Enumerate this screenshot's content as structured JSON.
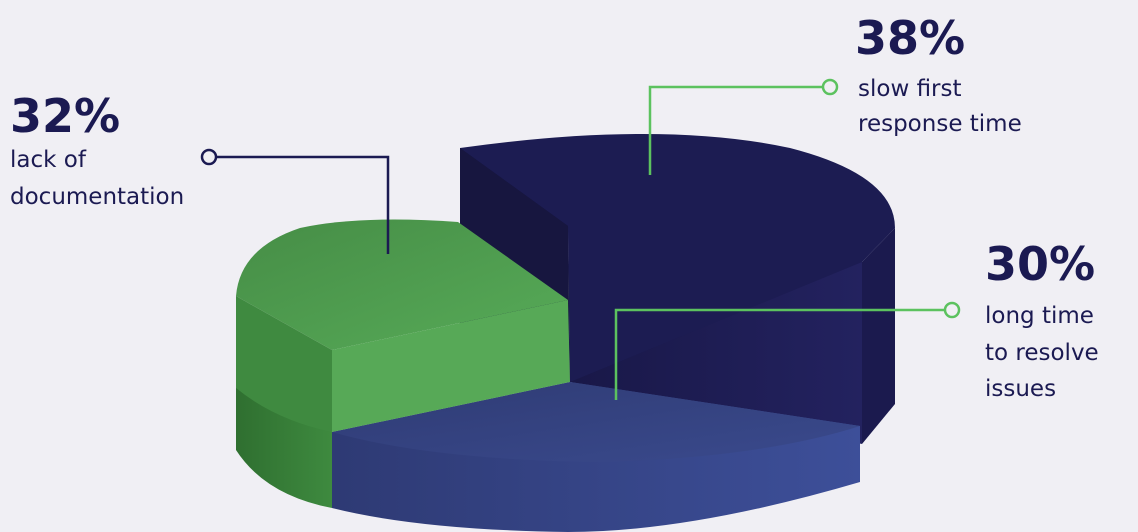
{
  "chart_data": {
    "type": "pie",
    "style": "3d",
    "title": "",
    "slices": [
      {
        "value": 38,
        "percent_label": "38%",
        "label_lines": [
          "slow first",
          "response time"
        ],
        "color": "#1c1c52",
        "leader_color": "#5cc25f"
      },
      {
        "value": 30,
        "percent_label": "30%",
        "label_lines": [
          "long time",
          "to resolve",
          "issues"
        ],
        "color": "#34427f",
        "leader_color": "#5cc25f"
      },
      {
        "value": 32,
        "percent_label": "32%",
        "label_lines": [
          "lack of",
          "documentation"
        ],
        "color": "#57a957",
        "leader_color": "#1b1a52"
      }
    ]
  },
  "colors": {
    "background": "#f0eff4",
    "text": "#1b1a52"
  }
}
